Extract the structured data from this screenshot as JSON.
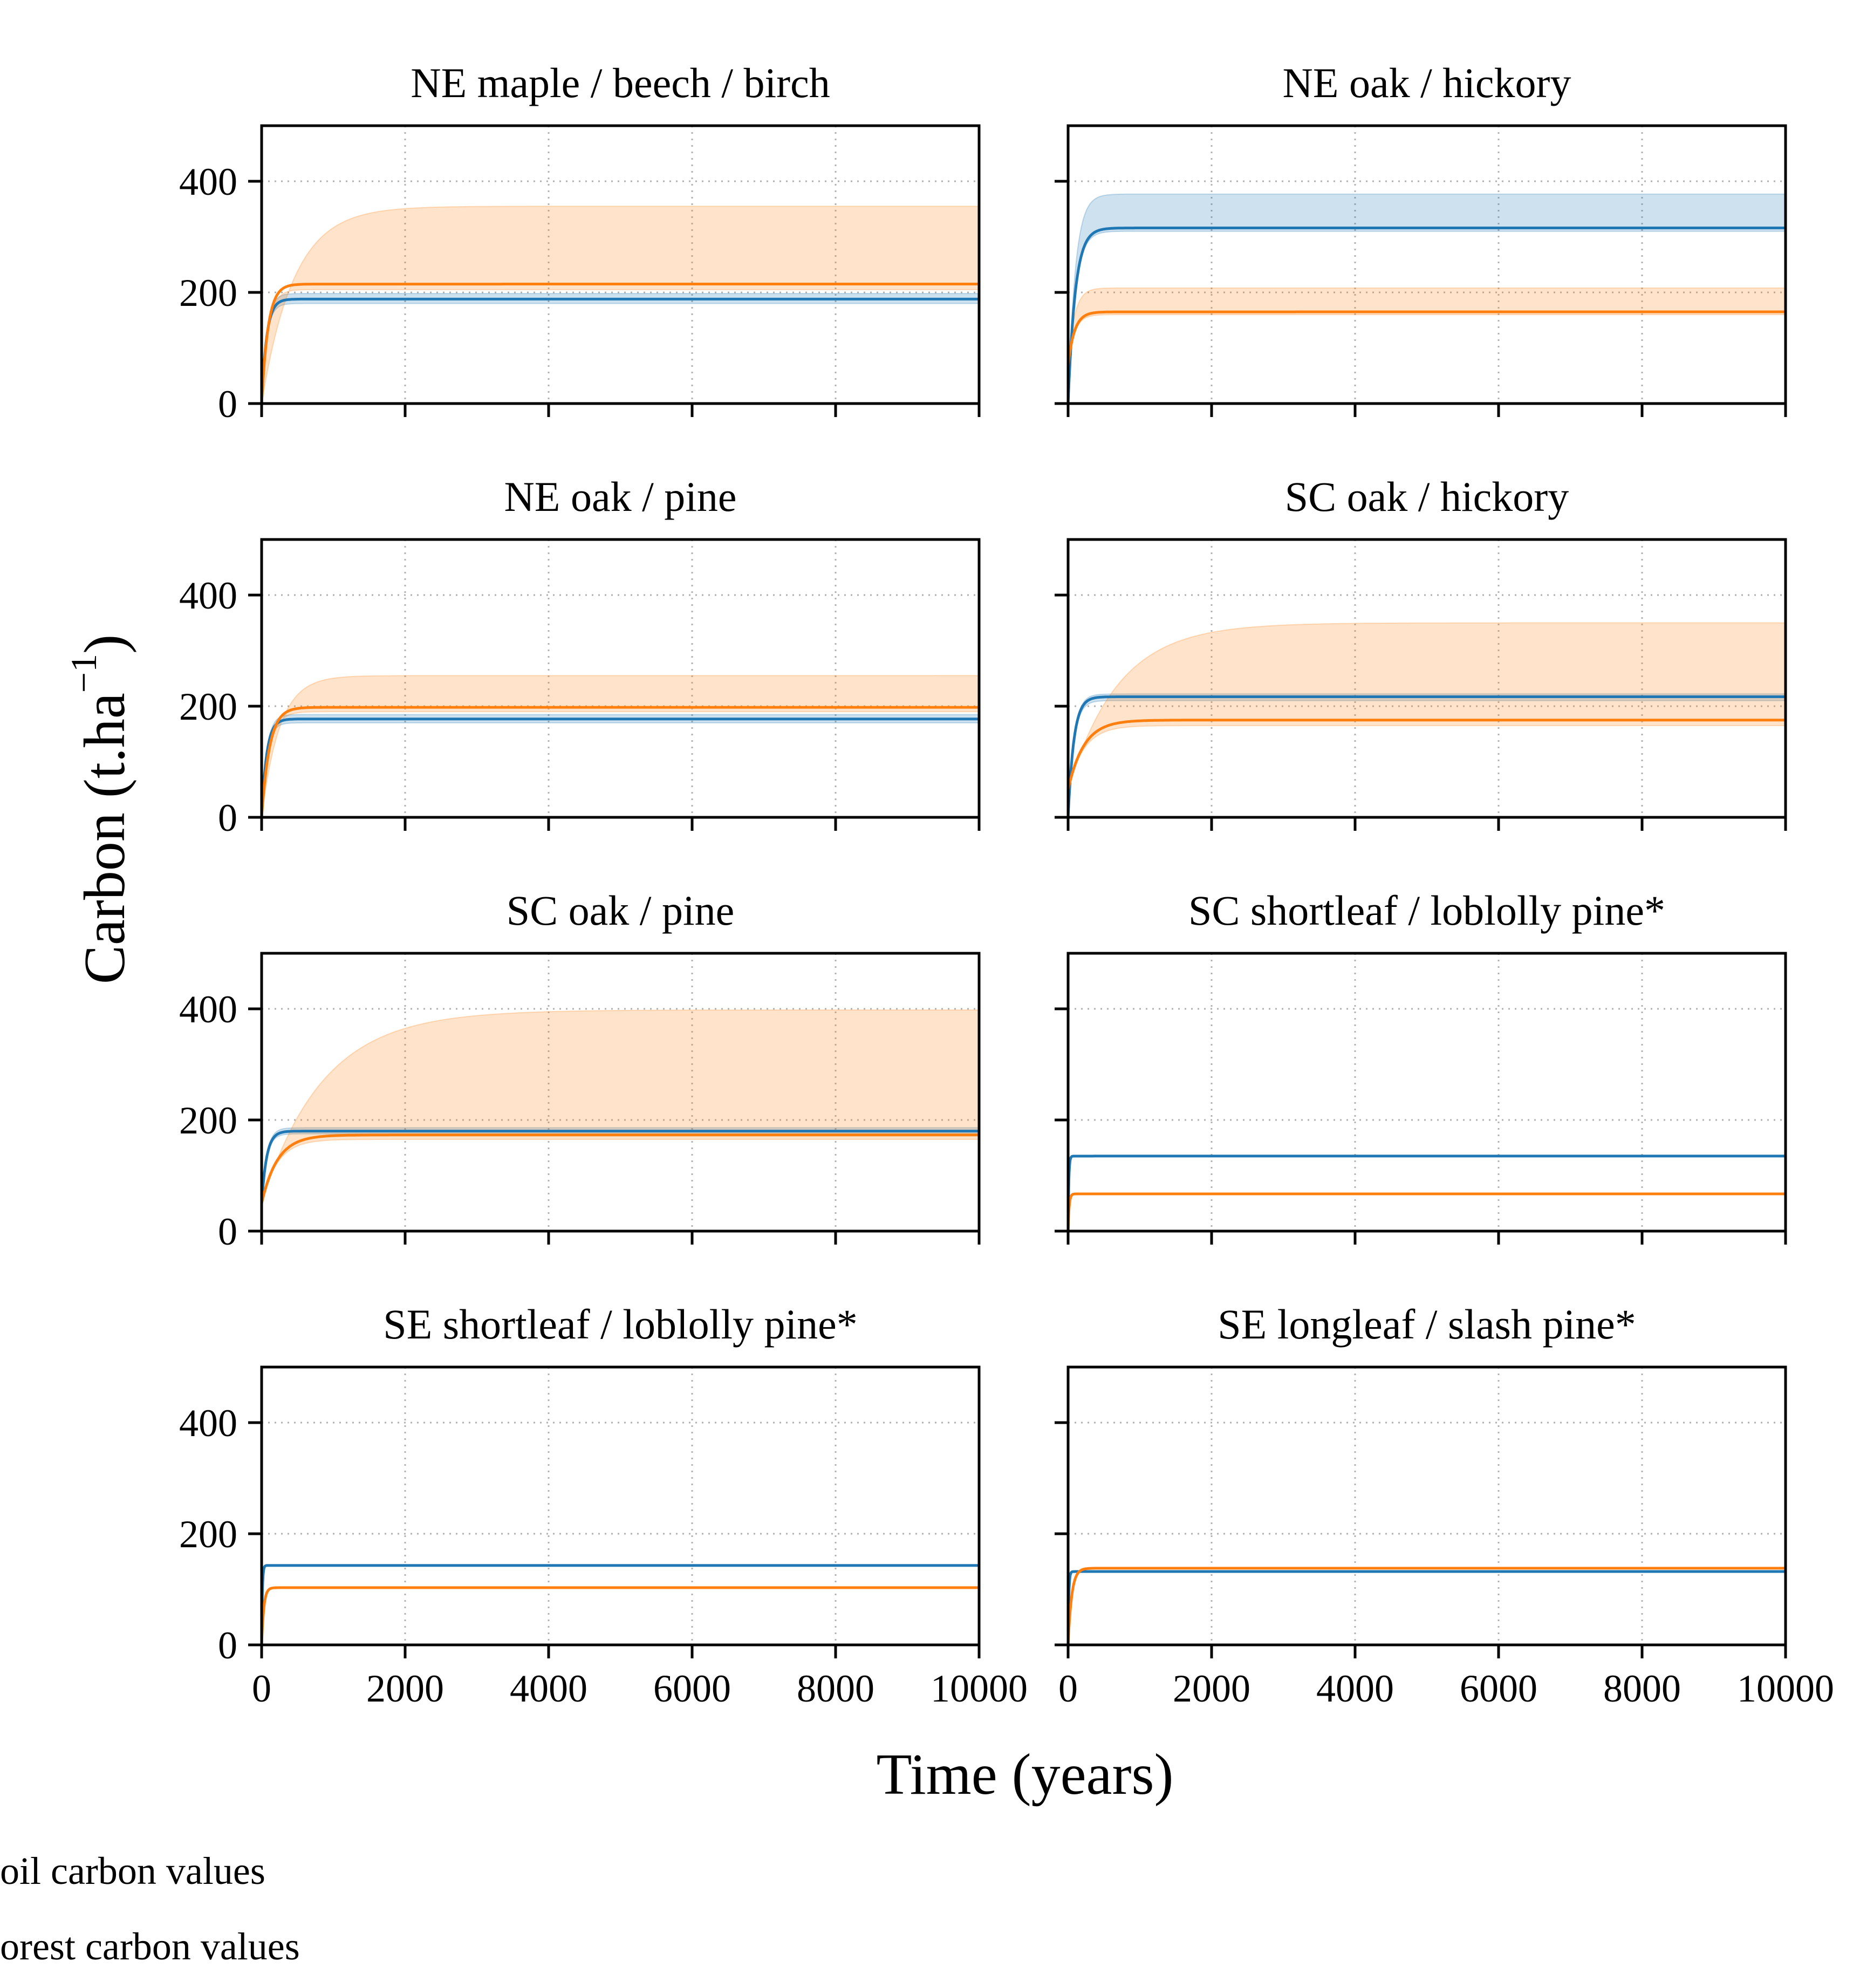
{
  "figure": {
    "xlabel": "Time (years)",
    "ylabel": "Carbon (t.ha",
    "ylabel_exponent": "−1",
    "ylabel_close": ")"
  },
  "legend": {
    "items": [
      {
        "label": "oil carbon values",
        "color": "#1f77b4"
      },
      {
        "label": "orest carbon values",
        "color": "#ff7f0e"
      }
    ]
  },
  "chart_data": [
    {
      "type": "line",
      "title": "NE maple / beech / birch",
      "xlim": [
        0,
        10000
      ],
      "ylim": [
        0,
        500
      ],
      "xticks": [
        0,
        2000,
        4000,
        6000,
        8000,
        10000
      ],
      "yticks": [
        0,
        200,
        400
      ],
      "show_xticklabels": false,
      "show_yticklabels": true,
      "grid": true,
      "series": [
        {
          "color": "#1f77b4",
          "start": 0,
          "plateau": 188,
          "rise_years": 70,
          "band": [
            180,
            198
          ]
        },
        {
          "color": "#ff7f0e",
          "start": 0,
          "plateau": 215,
          "rise_years": 90,
          "band": [
            205,
            355
          ],
          "band_rise_years": 450
        }
      ]
    },
    {
      "type": "line",
      "title": "NE oak / hickory",
      "xlim": [
        0,
        10000
      ],
      "ylim": [
        0,
        500
      ],
      "xticks": [
        0,
        2000,
        4000,
        6000,
        8000,
        10000
      ],
      "yticks": [
        0,
        200,
        400
      ],
      "show_xticklabels": false,
      "show_yticklabels": false,
      "grid": true,
      "series": [
        {
          "color": "#1f77b4",
          "start": 0,
          "plateau": 316,
          "rise_years": 100,
          "band": [
            310,
            377
          ]
        },
        {
          "color": "#ff7f0e",
          "start": 70,
          "plateau": 165,
          "rise_years": 90,
          "band": [
            160,
            208
          ]
        }
      ]
    },
    {
      "type": "line",
      "title": "NE oak / pine",
      "xlim": [
        0,
        10000
      ],
      "ylim": [
        0,
        500
      ],
      "xticks": [
        0,
        2000,
        4000,
        6000,
        8000,
        10000
      ],
      "yticks": [
        0,
        200,
        400
      ],
      "show_xticklabels": false,
      "show_yticklabels": true,
      "grid": true,
      "series": [
        {
          "color": "#1f77b4",
          "start": 0,
          "plateau": 177,
          "rise_years": 70,
          "band": [
            170,
            185
          ]
        },
        {
          "color": "#ff7f0e",
          "start": 0,
          "plateau": 198,
          "rise_years": 110,
          "band": [
            190,
            255
          ],
          "band_rise_years": 250
        }
      ]
    },
    {
      "type": "line",
      "title": "SC oak / hickory",
      "xlim": [
        0,
        10000
      ],
      "ylim": [
        0,
        500
      ],
      "xticks": [
        0,
        2000,
        4000,
        6000,
        8000,
        10000
      ],
      "yticks": [
        0,
        200,
        400
      ],
      "show_xticklabels": false,
      "show_yticklabels": false,
      "grid": true,
      "series": [
        {
          "color": "#1f77b4",
          "start": 0,
          "plateau": 217,
          "rise_years": 80,
          "band": [
            210,
            222
          ]
        },
        {
          "color": "#ff7f0e",
          "start": 50,
          "plateau": 175,
          "rise_years": 220,
          "band": [
            165,
            350
          ],
          "band_rise_years": 700
        }
      ]
    },
    {
      "type": "line",
      "title": "SC oak / pine",
      "xlim": [
        0,
        10000
      ],
      "ylim": [
        0,
        500
      ],
      "xticks": [
        0,
        2000,
        4000,
        6000,
        8000,
        10000
      ],
      "yticks": [
        0,
        200,
        400
      ],
      "show_xticklabels": false,
      "show_yticklabels": true,
      "grid": true,
      "series": [
        {
          "color": "#1f77b4",
          "start": 50,
          "plateau": 180,
          "rise_years": 70,
          "band": [
            175,
            186
          ]
        },
        {
          "color": "#ff7f0e",
          "start": 50,
          "plateau": 173,
          "rise_years": 220,
          "band": [
            165,
            398
          ],
          "band_rise_years": 850
        }
      ]
    },
    {
      "type": "line",
      "title": "SC shortleaf / loblolly pine*",
      "xlim": [
        0,
        10000
      ],
      "ylim": [
        0,
        500
      ],
      "xticks": [
        0,
        2000,
        4000,
        6000,
        8000,
        10000
      ],
      "yticks": [
        0,
        200,
        400
      ],
      "show_xticklabels": false,
      "show_yticklabels": false,
      "grid": true,
      "series": [
        {
          "color": "#1f77b4",
          "start": 0,
          "plateau": 135,
          "rise_years": 10
        },
        {
          "color": "#ff7f0e",
          "start": 0,
          "plateau": 67,
          "rise_years": 15
        }
      ]
    },
    {
      "type": "line",
      "title": "SE shortleaf / loblolly pine*",
      "xlim": [
        0,
        10000
      ],
      "ylim": [
        0,
        500
      ],
      "xticks": [
        0,
        2000,
        4000,
        6000,
        8000,
        10000
      ],
      "yticks": [
        0,
        200,
        400
      ],
      "show_xticklabels": true,
      "show_yticklabels": true,
      "grid": true,
      "series": [
        {
          "color": "#1f77b4",
          "start": 0,
          "plateau": 143,
          "rise_years": 10
        },
        {
          "color": "#ff7f0e",
          "start": 0,
          "plateau": 103,
          "rise_years": 30
        }
      ]
    },
    {
      "type": "line",
      "title": "SE longleaf / slash pine*",
      "xlim": [
        0,
        10000
      ],
      "ylim": [
        0,
        500
      ],
      "xticks": [
        0,
        2000,
        4000,
        6000,
        8000,
        10000
      ],
      "yticks": [
        0,
        200,
        400
      ],
      "show_xticklabels": true,
      "show_yticklabels": false,
      "grid": true,
      "series": [
        {
          "color": "#1f77b4",
          "start": 0,
          "plateau": 132,
          "rise_years": 10
        },
        {
          "color": "#ff7f0e",
          "start": 0,
          "plateau": 138,
          "rise_years": 50
        }
      ]
    }
  ]
}
